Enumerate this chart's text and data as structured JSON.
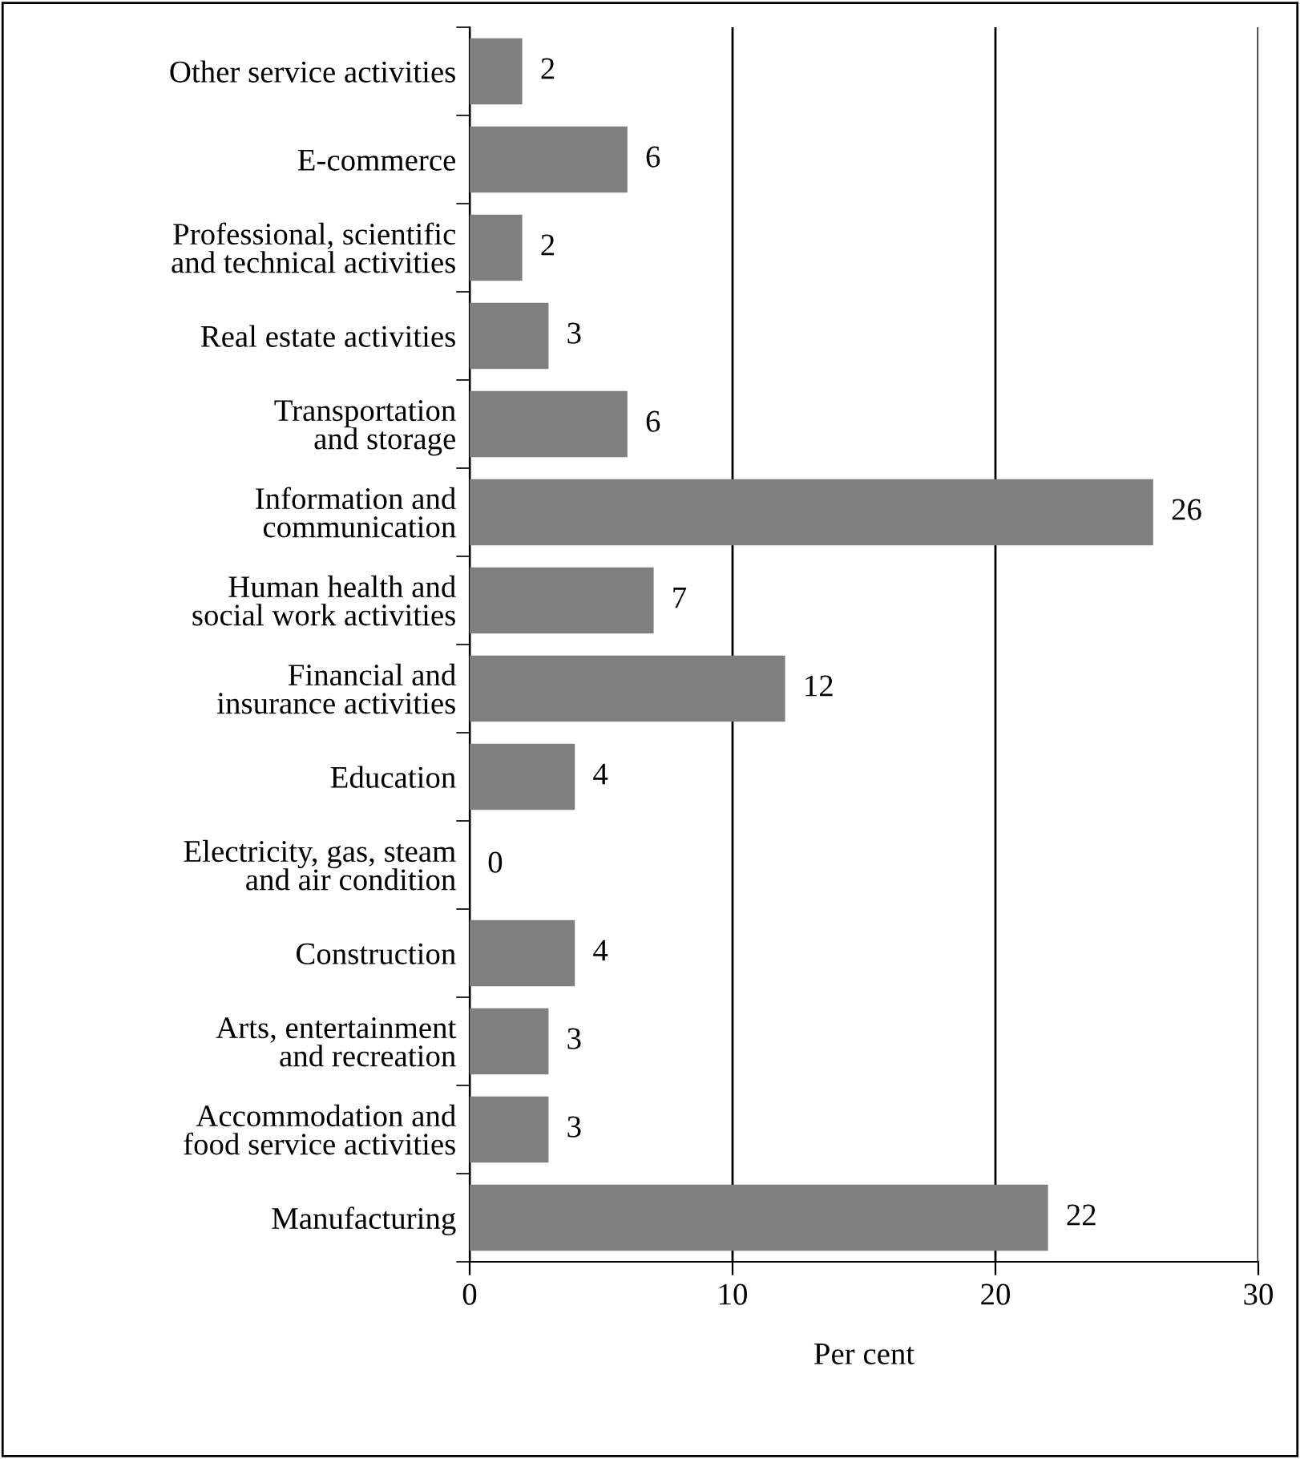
{
  "chart_data": {
    "type": "bar",
    "orientation": "horizontal",
    "xlabel": "Per cent",
    "categories": [
      "Other service activities",
      "E-commerce",
      "Professional, scientific\nand technical activities",
      "Real estate activities",
      "Transportation\nand storage",
      "Information and\ncommunication",
      "Human health and\nsocial work activities",
      "Financial and\ninsurance activities",
      "Education",
      "Electricity, gas, steam\nand air condition",
      "Construction",
      "Arts, entertainment\nand recreation",
      "Accommodation and\nfood service activities",
      "Manufacturing"
    ],
    "values": [
      2,
      6,
      2,
      3,
      6,
      26,
      7,
      12,
      4,
      0,
      4,
      3,
      3,
      22
    ],
    "color": "#7f7f7f",
    "xlim": [
      0,
      30
    ],
    "xticks": [
      0,
      10,
      20,
      30
    ],
    "grid": "x",
    "data_labels": true,
    "legend": false
  }
}
